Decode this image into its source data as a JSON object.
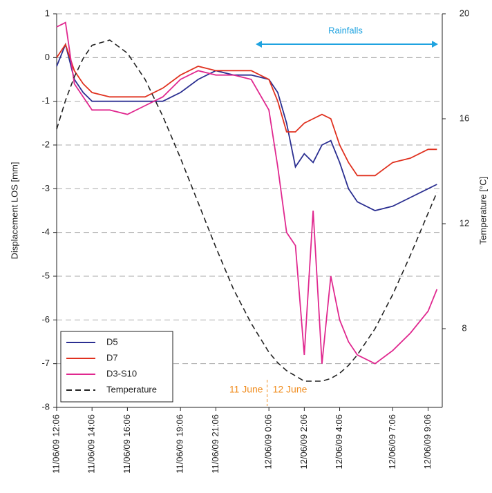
{
  "chart_data": {
    "type": "line",
    "x": [
      0,
      0.5,
      1,
      1.5,
      2,
      3,
      4,
      5,
      6,
      7,
      8,
      9,
      10,
      11,
      12,
      12.5,
      13,
      13.5,
      14,
      14.5,
      15,
      15.5,
      16,
      16.5,
      17,
      18,
      19,
      20,
      21,
      21.5
    ],
    "xlim": [
      0,
      21.8
    ],
    "xticks": [
      {
        "value": 0,
        "label": "11/06/09 12:06"
      },
      {
        "value": 2,
        "label": "11/06/09 14:06"
      },
      {
        "value": 4,
        "label": "11/06/09 16:06"
      },
      {
        "value": 7,
        "label": "11/06/09 19:06"
      },
      {
        "value": 9,
        "label": "11/06/09 21:06"
      },
      {
        "value": 12,
        "label": "12/06/09 0:06"
      },
      {
        "value": 14,
        "label": "12/06/09 2:06"
      },
      {
        "value": 16,
        "label": "12/06/09 4:06"
      },
      {
        "value": 19,
        "label": "12/06/09 7:06"
      },
      {
        "value": 21,
        "label": "12/06/09 9:06"
      }
    ],
    "ylabel": "Displacement LOS [mm]",
    "y2label": "Temperature [°C]",
    "ylim": [
      -8,
      1
    ],
    "yticks": [
      -8,
      -7,
      -6,
      -5,
      -4,
      -3,
      -2,
      -1,
      0,
      1
    ],
    "y2lim": [
      5,
      20
    ],
    "y2ticks": [
      8,
      12,
      16,
      20
    ],
    "grid": true,
    "legend": "lower left",
    "annotations": [
      "Rainfalls",
      "11 June",
      "12 June"
    ],
    "series": [
      {
        "name": "D5",
        "color": "#2b2f91",
        "values": [
          -0.2,
          0.3,
          -0.5,
          -0.8,
          -1,
          -1,
          -1,
          -1,
          -1,
          -0.8,
          -0.5,
          -0.3,
          -0.4,
          -0.4,
          -0.5,
          -0.8,
          -1.5,
          -2.5,
          -2.2,
          -2.4,
          -2,
          -1.9,
          -2.4,
          -3,
          -3.3,
          -3.5,
          -3.4,
          -3.2,
          -3,
          -2.9
        ]
      },
      {
        "name": "D7",
        "color": "#e0311f",
        "values": [
          0,
          0.3,
          -0.3,
          -0.6,
          -0.8,
          -0.9,
          -0.9,
          -0.9,
          -0.7,
          -0.4,
          -0.2,
          -0.3,
          -0.3,
          -0.3,
          -0.5,
          -1,
          -1.7,
          -1.7,
          -1.5,
          -1.4,
          -1.3,
          -1.4,
          -2,
          -2.4,
          -2.7,
          -2.7,
          -2.4,
          -2.3,
          -2.1,
          -2.1
        ]
      },
      {
        "name": "D3-S10",
        "color": "#e0288f",
        "values": [
          0.7,
          0.8,
          -0.6,
          -0.9,
          -1.2,
          -1.2,
          -1.3,
          -1.1,
          -0.9,
          -0.5,
          -0.3,
          -0.4,
          -0.4,
          -0.5,
          -1.2,
          -2.5,
          -4,
          -4.3,
          -6.8,
          -3.5,
          -7,
          -5,
          -6,
          -6.5,
          -6.8,
          -7,
          -6.7,
          -6.3,
          -5.8,
          -5.3
        ]
      },
      {
        "name": "Temperature",
        "color": "#222222",
        "style": "dashed",
        "axis": "y2",
        "values": [
          15.6,
          16.7,
          17.6,
          18.3,
          18.8,
          19,
          18.5,
          17.5,
          16.1,
          14.5,
          12.8,
          11.1,
          9.5,
          8.2,
          7.1,
          6.7,
          6.4,
          6.2,
          6,
          6,
          6,
          6.1,
          6.3,
          6.6,
          7,
          8,
          9.3,
          10.8,
          12.4,
          13.2
        ]
      }
    ]
  }
}
